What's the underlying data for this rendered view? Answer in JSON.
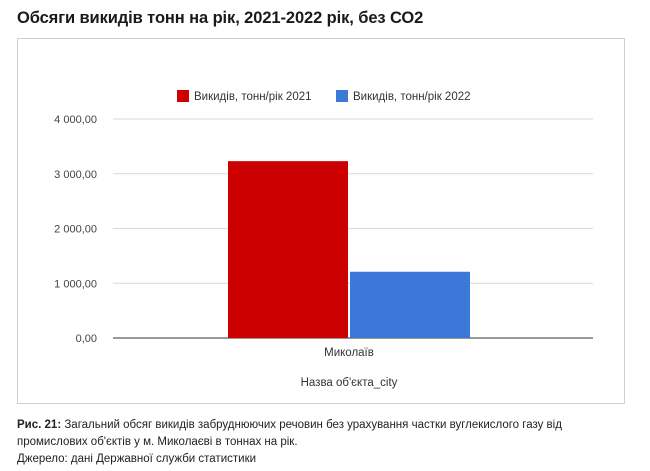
{
  "title": "Обсяги викидів тонн на рік, 2021-2022 рік, без СО2",
  "chart_data": {
    "type": "bar",
    "categories": [
      "Миколаїв"
    ],
    "series": [
      {
        "name": "Викидів, тонн/рік 2021",
        "values": [
          3230
        ],
        "color": "#cc0000"
      },
      {
        "name": "Викидів, тонн/рік 2022",
        "values": [
          1210
        ],
        "color": "#3c78d8"
      }
    ],
    "ylim": [
      0,
      4000
    ],
    "yticks": [
      "0,00",
      "1 000,00",
      "2 000,00",
      "3 000,00",
      "4 000,00"
    ],
    "xlabel": "Назва об'єкта_city",
    "ylabel": "",
    "grid": true,
    "legend": "top"
  },
  "caption": {
    "label": "Рис. 21:",
    "text": "Загальний обсяг викидів забруднюючих речовин без урахування частки вуглекислого газу від промислових об'єктів у м. Миколаєві в тоннах на рік.",
    "source": "Джерело: дані Державної служби статистики"
  }
}
